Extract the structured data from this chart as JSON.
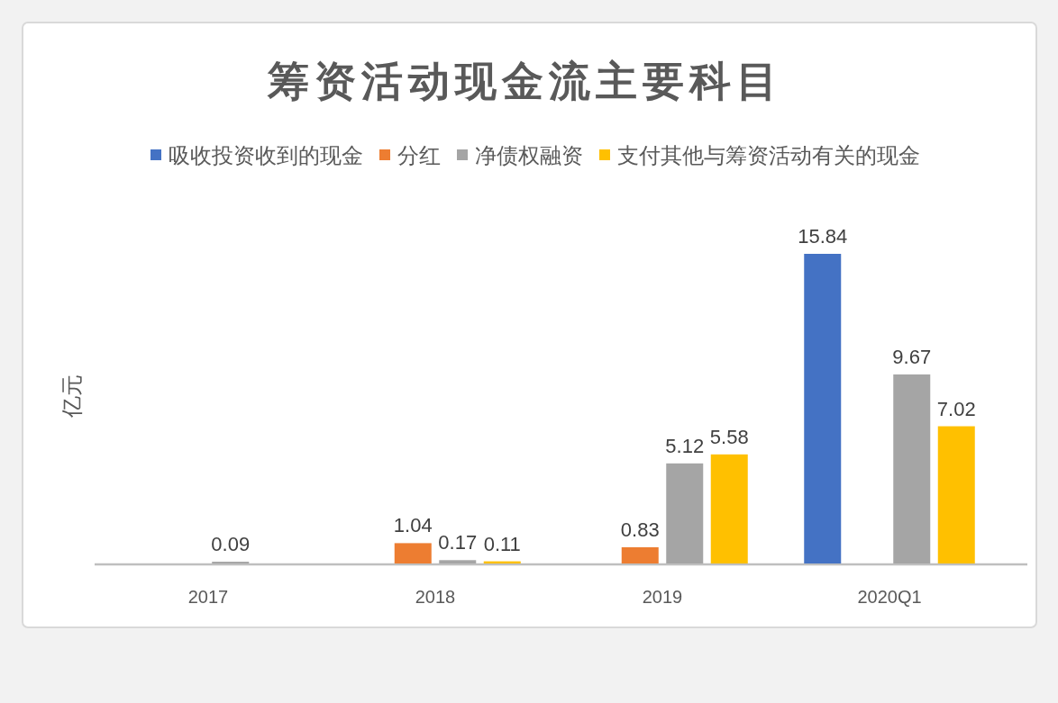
{
  "chart_data": {
    "type": "bar",
    "title": "筹资活动现金流主要科目",
    "ylabel": "亿元",
    "categories": [
      "2017",
      "2018",
      "2019",
      "2020Q1"
    ],
    "series": [
      {
        "name": "吸收投资收到的现金",
        "color": "#4472c4",
        "values": [
          null,
          null,
          null,
          15.84
        ]
      },
      {
        "name": "分红",
        "color": "#ed7d31",
        "values": [
          null,
          1.04,
          0.83,
          null
        ]
      },
      {
        "name": "净债权融资",
        "color": "#a5a5a5",
        "values": [
          0.09,
          0.17,
          5.12,
          9.67
        ]
      },
      {
        "name": "支付其他与筹资活动有关的现金",
        "color": "#ffc000",
        "values": [
          null,
          0.11,
          5.58,
          7.02
        ]
      }
    ],
    "data_labels": true,
    "legend": "top"
  }
}
